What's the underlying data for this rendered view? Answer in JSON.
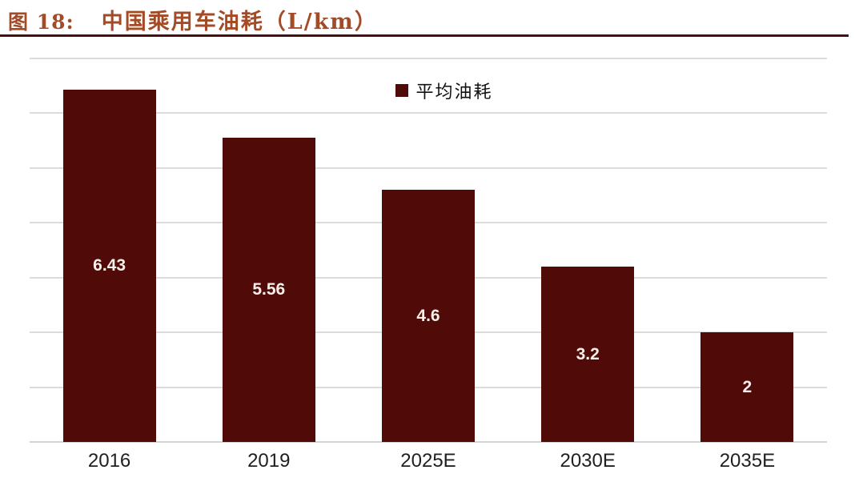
{
  "header": {
    "figure_label": "图 18:",
    "title": "中国乘用车油耗（L/km）"
  },
  "chart_data": {
    "type": "bar",
    "title": "中国乘用车油耗（L/km）",
    "categories": [
      "2016",
      "2019",
      "2025E",
      "2030E",
      "2035E"
    ],
    "values": [
      6.43,
      5.56,
      4.6,
      3.2,
      2
    ],
    "value_labels": [
      "6.43",
      "5.56",
      "4.6",
      "3.2",
      "2"
    ],
    "series_name": "平均油耗",
    "legend_label": "平均油耗",
    "legend_position": "top-center",
    "xlabel": "",
    "ylabel": "",
    "ylim": [
      0,
      7
    ],
    "gridline_step": 1,
    "grid": "horizontal"
  },
  "colors": {
    "background": "#FFFFFF",
    "bar": "#500B08",
    "value_label": "#F7EFE9",
    "title": "#A34A26",
    "rule": "#45100F",
    "gridline": "#DCDCDC",
    "axis_line": "#D4D4D4",
    "tick_label": "#1F1F1F"
  }
}
